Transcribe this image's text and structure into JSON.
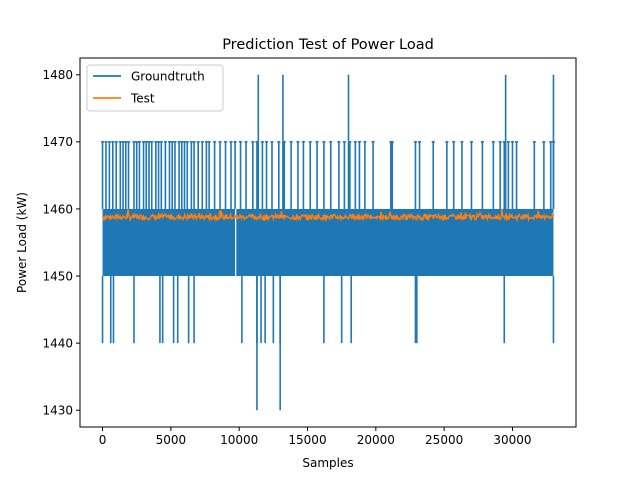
{
  "chart_data": {
    "type": "line",
    "title": "Prediction Test of Power Load",
    "xlabel": "Samples",
    "ylabel": "Power Load (kW)",
    "xlim": [
      -1650,
      34650
    ],
    "ylim": [
      1427.5,
      1482.5
    ],
    "xticks": [
      0,
      5000,
      10000,
      15000,
      20000,
      25000,
      30000
    ],
    "xtick_labels": [
      "0",
      "5000",
      "10000",
      "15000",
      "20000",
      "25000",
      "30000"
    ],
    "yticks": [
      1430,
      1440,
      1450,
      1460,
      1470,
      1480
    ],
    "ytick_labels": [
      "1430",
      "1440",
      "1450",
      "1460",
      "1470",
      "1480"
    ],
    "legend_position": "upper-left",
    "grid": false,
    "series": [
      {
        "name": "Groundtruth",
        "color": "#1f77b4",
        "base_band": [
          1450,
          1460
        ],
        "x_range": [
          0,
          33000
        ],
        "spikes_1470": [
          0,
          250,
          500,
          750,
          1000,
          1300,
          1500,
          1700,
          1900,
          2300,
          2500,
          2700,
          3000,
          3200,
          3400,
          3600,
          3900,
          4100,
          4300,
          4600,
          4900,
          5100,
          5300,
          5600,
          5800,
          6000,
          6200,
          6500,
          6700,
          7000,
          7300,
          7600,
          7800,
          8200,
          8600,
          9000,
          9400,
          9700,
          10100,
          10500,
          11000,
          11300,
          11700,
          12000,
          12400,
          12900,
          13300,
          13800,
          14300,
          14700,
          15200,
          15700,
          16200,
          16700,
          17300,
          17700,
          18100,
          18500,
          18800,
          19200,
          19800,
          21100,
          21200,
          22900,
          23200,
          24200,
          25200,
          25700,
          26300,
          27000,
          27800,
          28600,
          29100,
          29400,
          29700,
          30000,
          30300,
          31600,
          32300,
          32800,
          33000
        ],
        "spikes_1480": [
          11400,
          13200,
          18000,
          29500,
          33000
        ],
        "dips_1440": [
          0,
          600,
          800,
          2300,
          4200,
          4400,
          5200,
          5500,
          6300,
          6700,
          10200,
          11300,
          11600,
          11900,
          12500,
          13000,
          16200,
          17500,
          18200,
          22900,
          23000,
          29400,
          33000
        ],
        "dips_1430": [
          11300,
          13000
        ],
        "gap_x": 9700
      },
      {
        "name": "Test",
        "color": "#ff7f0e",
        "x_range": [
          0,
          33000
        ],
        "mean_level": 1458.8,
        "variation_range": [
          1458,
          1460
        ]
      }
    ]
  }
}
